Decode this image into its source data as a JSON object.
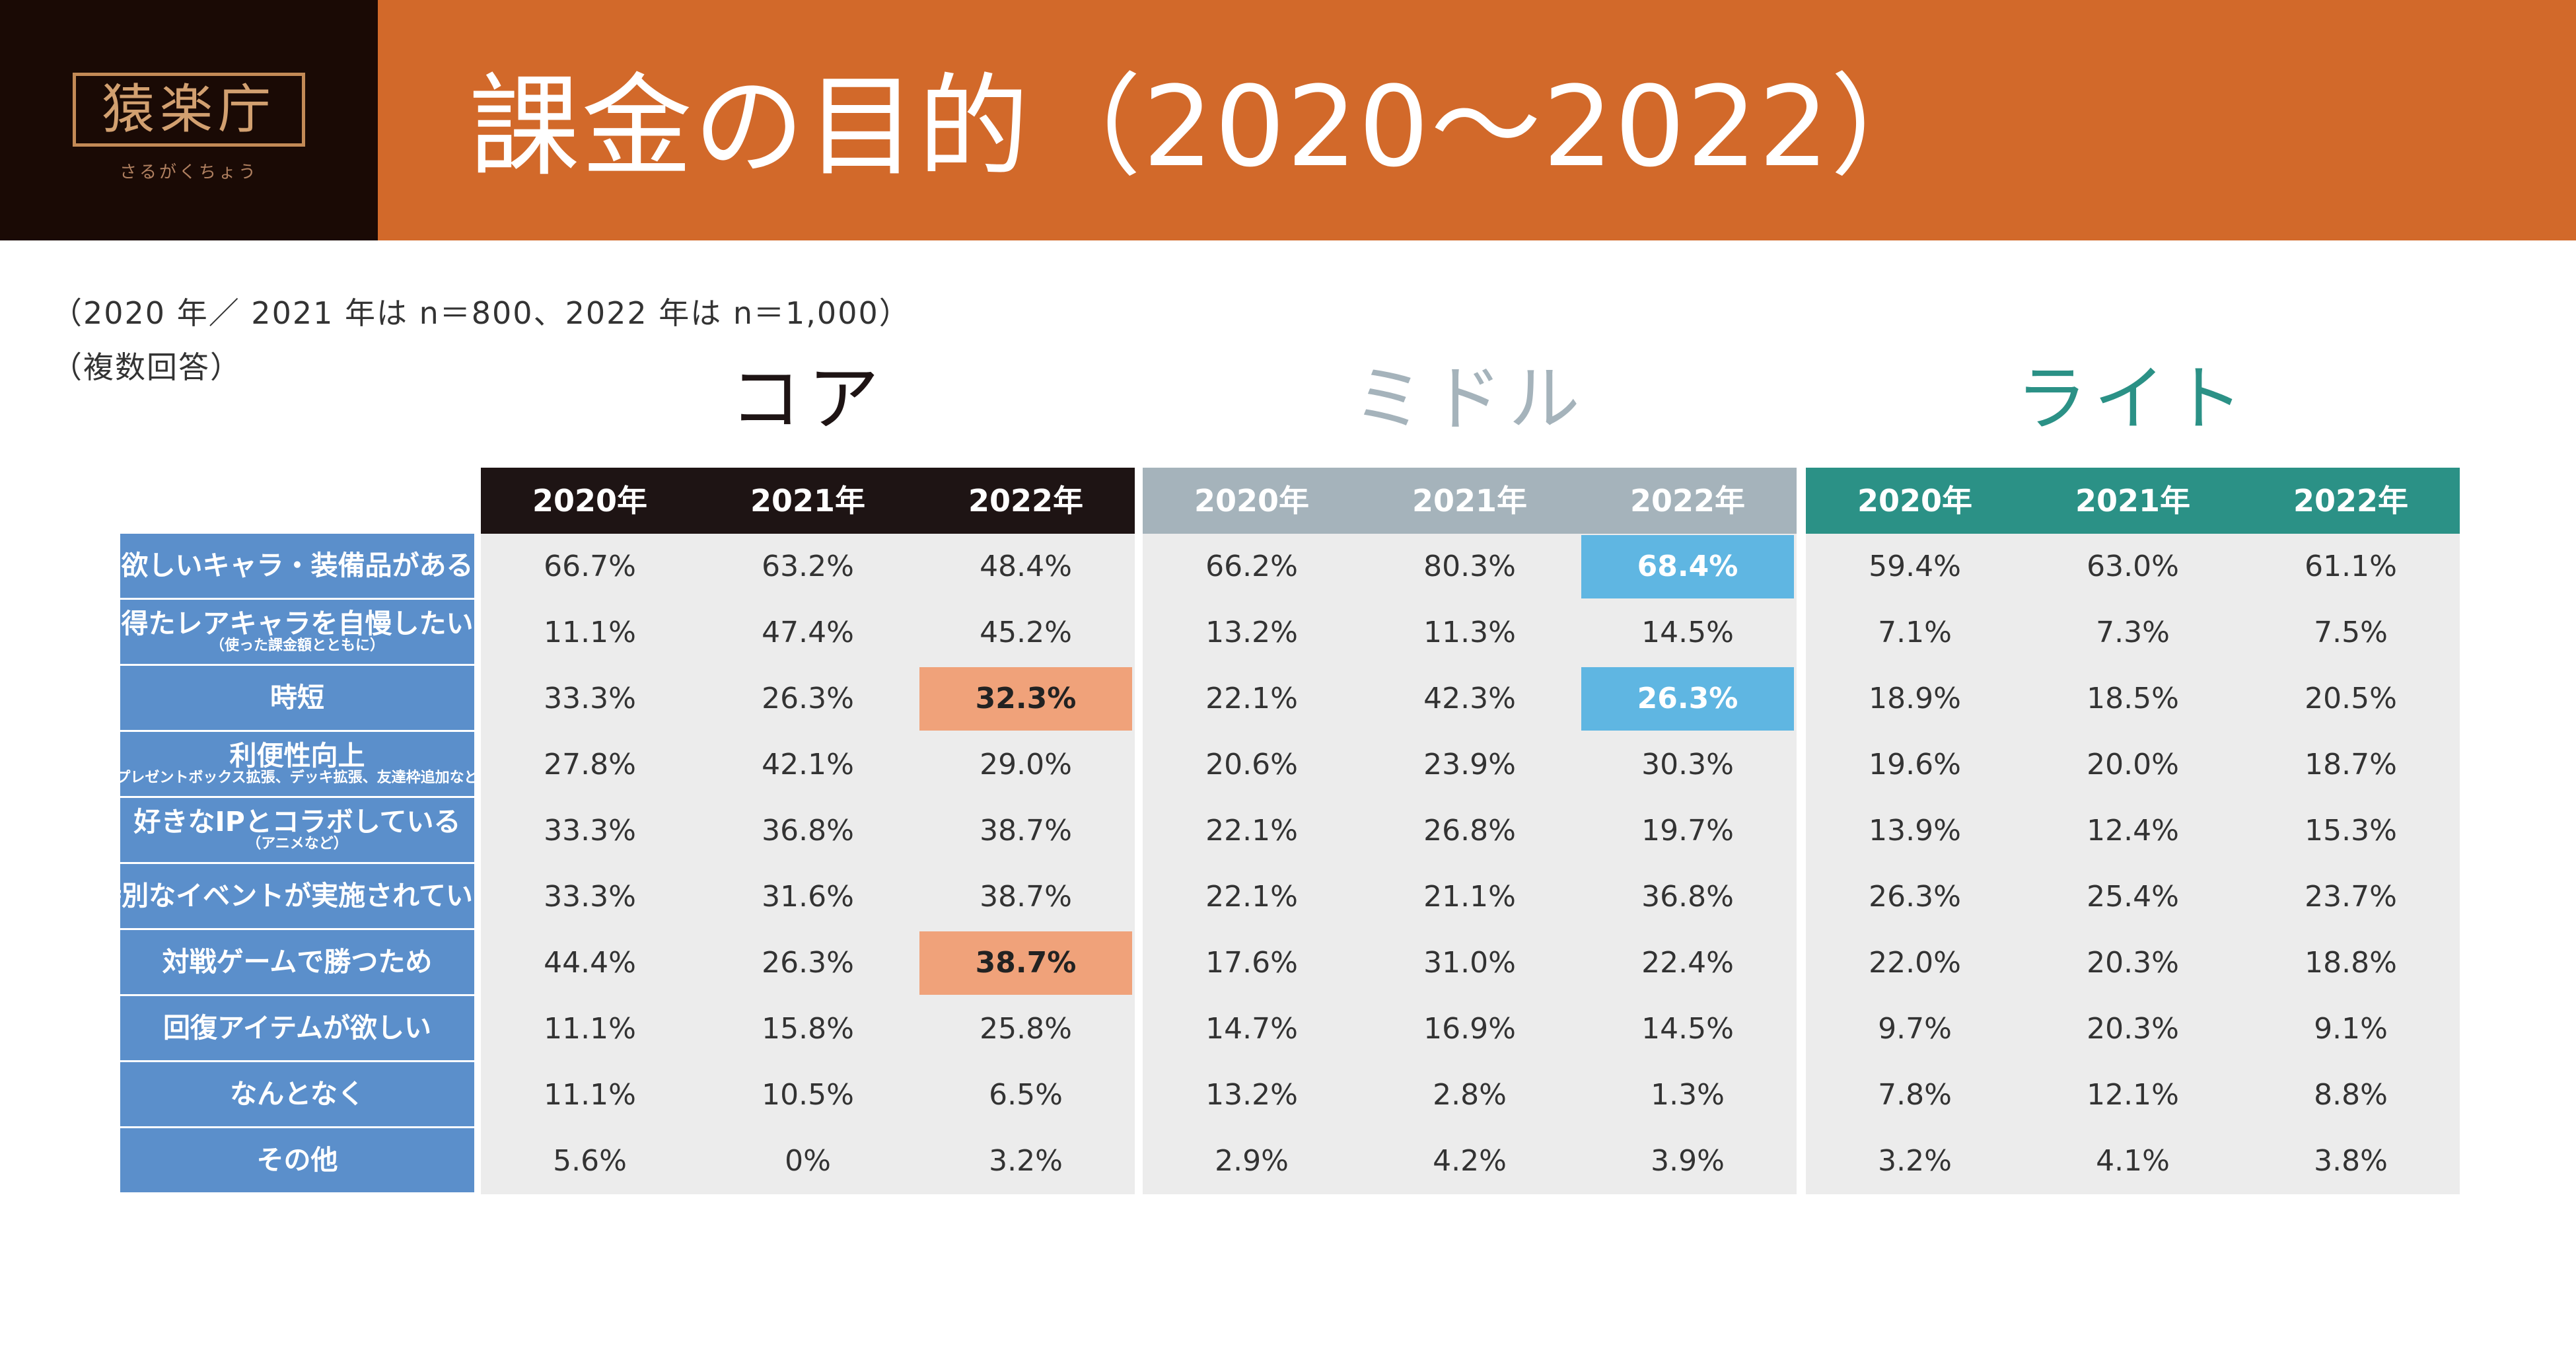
{
  "header": {
    "logo_text": "猿楽庁",
    "logo_sub": "さるがくちょう",
    "title": "課金の目的（2020～2022）"
  },
  "notes": {
    "sample": "（2020 年／ 2021 年は n＝800、2022 年は n＝1,000）",
    "multi": "（複数回答）"
  },
  "colors": {
    "header_bg": "#d2692a",
    "logo_bg": "#1a0a05",
    "core": "#1e1414",
    "middle": "#a5b3bb",
    "light": "#2b9186",
    "label_bg": "#5b8fcb",
    "body_bg": "#ececec",
    "hl_core": "#f0a27a",
    "hl_middle": "#5fb6e2"
  },
  "chart_data": {
    "type": "table",
    "title": "課金の目的（2020～2022）",
    "years": [
      "2020年",
      "2021年",
      "2022年"
    ],
    "rows": [
      {
        "label": "欲しいキャラ・装備品がある",
        "sub": ""
      },
      {
        "label": "得たレアキャラを自慢したい",
        "sub": "（使った課金額とともに）"
      },
      {
        "label": "時短",
        "sub": ""
      },
      {
        "label": "利便性向上",
        "sub": "（プレゼントボックス拡張、デッキ拡張、友達枠追加など）"
      },
      {
        "label": "好きなIPとコラボしている",
        "sub": "（アニメなど）"
      },
      {
        "label": "特別なイベントが実施されている",
        "sub": ""
      },
      {
        "label": "対戦ゲームで勝つため",
        "sub": ""
      },
      {
        "label": "回復アイテムが欲しい",
        "sub": ""
      },
      {
        "label": "なんとなく",
        "sub": ""
      },
      {
        "label": "その他",
        "sub": ""
      }
    ],
    "groups": [
      {
        "name": "コア",
        "key": "core",
        "values": [
          [
            "66.7%",
            "63.2%",
            "48.4%"
          ],
          [
            "11.1%",
            "47.4%",
            "45.2%"
          ],
          [
            "33.3%",
            "26.3%",
            "32.3%"
          ],
          [
            "27.8%",
            "42.1%",
            "29.0%"
          ],
          [
            "33.3%",
            "36.8%",
            "38.7%"
          ],
          [
            "33.3%",
            "31.6%",
            "38.7%"
          ],
          [
            "44.4%",
            "26.3%",
            "38.7%"
          ],
          [
            "11.1%",
            "15.8%",
            "25.8%"
          ],
          [
            "11.1%",
            "10.5%",
            "6.5%"
          ],
          [
            "5.6%",
            "0%",
            "3.2%"
          ]
        ],
        "highlights": [
          [
            2,
            2
          ],
          [
            6,
            2
          ]
        ]
      },
      {
        "name": "ミドル",
        "key": "middle",
        "values": [
          [
            "66.2%",
            "80.3%",
            "68.4%"
          ],
          [
            "13.2%",
            "11.3%",
            "14.5%"
          ],
          [
            "22.1%",
            "42.3%",
            "26.3%"
          ],
          [
            "20.6%",
            "23.9%",
            "30.3%"
          ],
          [
            "22.1%",
            "26.8%",
            "19.7%"
          ],
          [
            "22.1%",
            "21.1%",
            "36.8%"
          ],
          [
            "17.6%",
            "31.0%",
            "22.4%"
          ],
          [
            "14.7%",
            "16.9%",
            "14.5%"
          ],
          [
            "13.2%",
            "2.8%",
            "1.3%"
          ],
          [
            "2.9%",
            "4.2%",
            "3.9%"
          ]
        ],
        "highlights": [
          [
            0,
            2
          ],
          [
            2,
            2
          ]
        ]
      },
      {
        "name": "ライト",
        "key": "light",
        "values": [
          [
            "59.4%",
            "63.0%",
            "61.1%"
          ],
          [
            "7.1%",
            "7.3%",
            "7.5%"
          ],
          [
            "18.9%",
            "18.5%",
            "20.5%"
          ],
          [
            "19.6%",
            "20.0%",
            "18.7%"
          ],
          [
            "13.9%",
            "12.4%",
            "15.3%"
          ],
          [
            "26.3%",
            "25.4%",
            "23.7%"
          ],
          [
            "22.0%",
            "20.3%",
            "18.8%"
          ],
          [
            "9.7%",
            "20.3%",
            "9.1%"
          ],
          [
            "7.8%",
            "12.1%",
            "8.8%"
          ],
          [
            "3.2%",
            "4.1%",
            "3.8%"
          ]
        ],
        "highlights": []
      }
    ]
  }
}
